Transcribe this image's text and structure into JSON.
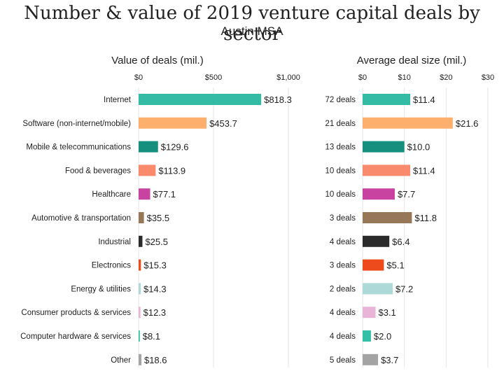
{
  "title": "Number & value of 2019 venture capital deals by sector",
  "subtitle": "Austin MSA",
  "chart_data": [
    {
      "type": "bar",
      "orientation": "horizontal",
      "title": "Value of deals (mil.)",
      "xlim": [
        0,
        1000
      ],
      "ticks": [
        0,
        500,
        1000
      ],
      "tick_labels": [
        "$0",
        "$500",
        "$1,000"
      ],
      "grid": true,
      "categories": [
        "Internet",
        "Software (non-internet/mobile)",
        "Mobile & telecommunications",
        "Food & beverages",
        "Healthcare",
        "Automotive & transportation",
        "Industrial",
        "Electronics",
        "Energy & utilities",
        "Consumer products & services",
        "Computer hardware & services",
        "Other"
      ],
      "values": [
        818.3,
        453.7,
        129.6,
        113.9,
        77.1,
        35.5,
        25.5,
        15.3,
        14.3,
        12.3,
        8.1,
        18.6
      ],
      "value_labels": [
        "$818.3",
        "$453.7",
        "$129.6",
        "$113.9",
        "$77.1",
        "$35.5",
        "$25.5",
        "$15.3",
        "$14.3",
        "$12.3",
        "$8.1",
        "$18.6"
      ],
      "colors": [
        "#33bba5",
        "#fdb06e",
        "#168f7e",
        "#f98a6c",
        "#c8439f",
        "#967859",
        "#2b2b2b",
        "#ee4b1d",
        "#add9d8",
        "#e8b5d8",
        "#35bfa6",
        "#a3a3a3"
      ]
    },
    {
      "type": "bar",
      "orientation": "horizontal",
      "title": "Average deal size (mil.)",
      "xlim": [
        0,
        30
      ],
      "ticks": [
        0,
        10,
        20,
        30
      ],
      "tick_labels": [
        "$0",
        "$10",
        "$20",
        "$30"
      ],
      "grid": true,
      "categories": [
        "72 deals",
        "21 deals",
        "13 deals",
        "10 deals",
        "10 deals",
        "3 deals",
        "4 deals",
        "3 deals",
        "2 deals",
        "4 deals",
        "4 deals",
        "5 deals"
      ],
      "values": [
        11.4,
        21.6,
        10.0,
        11.4,
        7.7,
        11.8,
        6.4,
        5.1,
        7.2,
        3.1,
        2.0,
        3.7
      ],
      "value_labels": [
        "$11.4",
        "$21.6",
        "$10.0",
        "$11.4",
        "$7.7",
        "$11.8",
        "$6.4",
        "$5.1",
        "$7.2",
        "$3.1",
        "$2.0",
        "$3.7"
      ],
      "colors": [
        "#33bba5",
        "#fdb06e",
        "#168f7e",
        "#f98a6c",
        "#c8439f",
        "#967859",
        "#2b2b2b",
        "#ee4b1d",
        "#add9d8",
        "#e8b5d8",
        "#35bfa6",
        "#a3a3a3"
      ]
    }
  ]
}
